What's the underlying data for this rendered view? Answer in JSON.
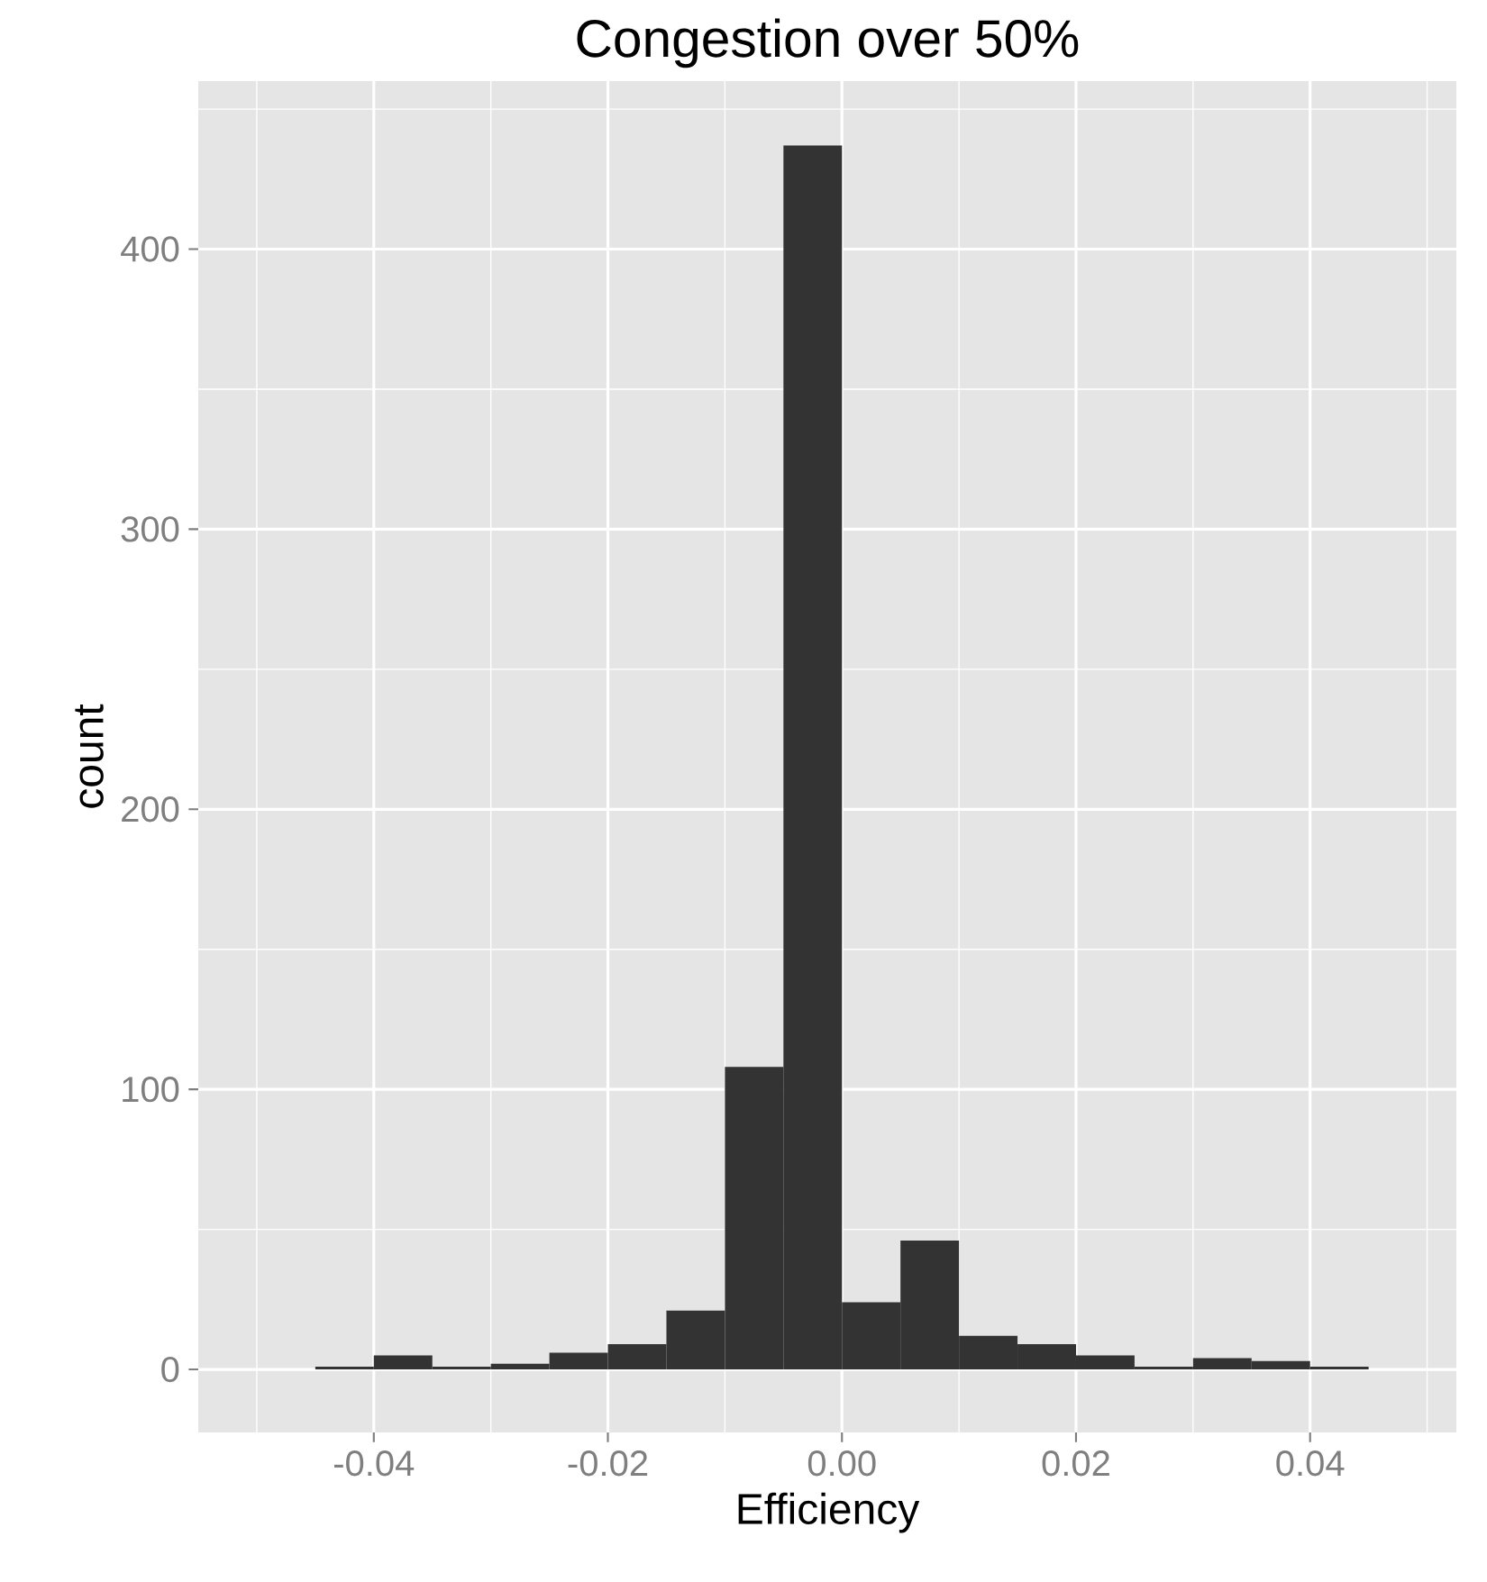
{
  "chart_data": {
    "type": "histogram",
    "title": "Congestion over 50%",
    "xlabel": "Efficiency",
    "ylabel": "count",
    "bins": [
      -0.045,
      -0.04,
      -0.035,
      -0.03,
      -0.025,
      -0.02,
      -0.015,
      -0.01,
      -0.005,
      0,
      0.005,
      0.01,
      0.015,
      0.02,
      0.025,
      0.03,
      0.035,
      0.04,
      0.045
    ],
    "values": [
      1,
      5,
      1,
      2,
      6,
      9,
      21,
      108,
      437,
      24,
      46,
      12,
      9,
      5,
      1,
      4,
      3,
      1
    ],
    "color": "#333333",
    "xlim": [
      -0.055,
      0.0525
    ],
    "ylim": [
      -22.5,
      460
    ],
    "xticks": [
      -0.04,
      -0.02,
      {
        "value": 0,
        "label": "0.00"
      },
      0.02,
      0.04
    ],
    "yticks": [
      0,
      100,
      200,
      300,
      400
    ],
    "grid": true
  }
}
